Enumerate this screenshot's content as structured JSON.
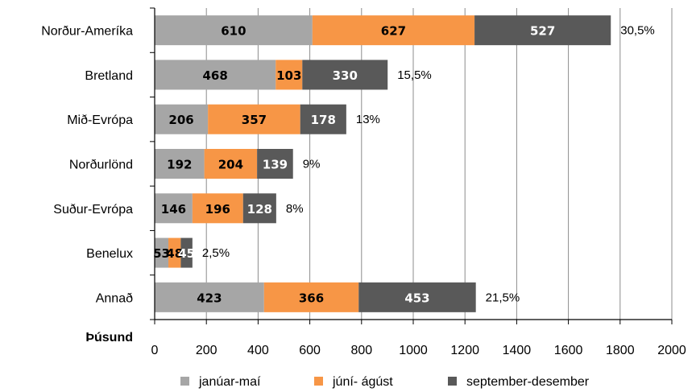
{
  "chart_data": {
    "type": "bar",
    "orientation": "horizontal",
    "stacked": true,
    "categories": [
      "Norður-Ameríka",
      "Bretland",
      "Mið-Evrópa",
      "Norðurlönd",
      "Suður-Evrópa",
      "Benelux",
      "Annað"
    ],
    "series": [
      {
        "name": "janúar-maí",
        "values": [
          610,
          468,
          206,
          192,
          146,
          53,
          423
        ],
        "color": "#a6a6a6",
        "label_color": "#000000"
      },
      {
        "name": "júní- ágúst",
        "values": [
          627,
          103,
          357,
          204,
          196,
          48,
          366
        ],
        "color": "#f79646",
        "label_color": "#000000"
      },
      {
        "name": "september-desember",
        "values": [
          527,
          330,
          178,
          139,
          128,
          45,
          453
        ],
        "color": "#595959",
        "label_color": "#ffffff"
      }
    ],
    "shares": [
      "30,5%",
      "15,5%",
      "13%",
      "9%",
      "8%",
      "2,5%",
      "21,5%"
    ],
    "xlim": [
      0,
      2000
    ],
    "xticks": [
      0,
      200,
      400,
      600,
      800,
      1000,
      1200,
      1400,
      1600,
      1800,
      2000
    ],
    "xlabel": "Þúsund",
    "grid": "vertical",
    "legend": "bottom"
  }
}
